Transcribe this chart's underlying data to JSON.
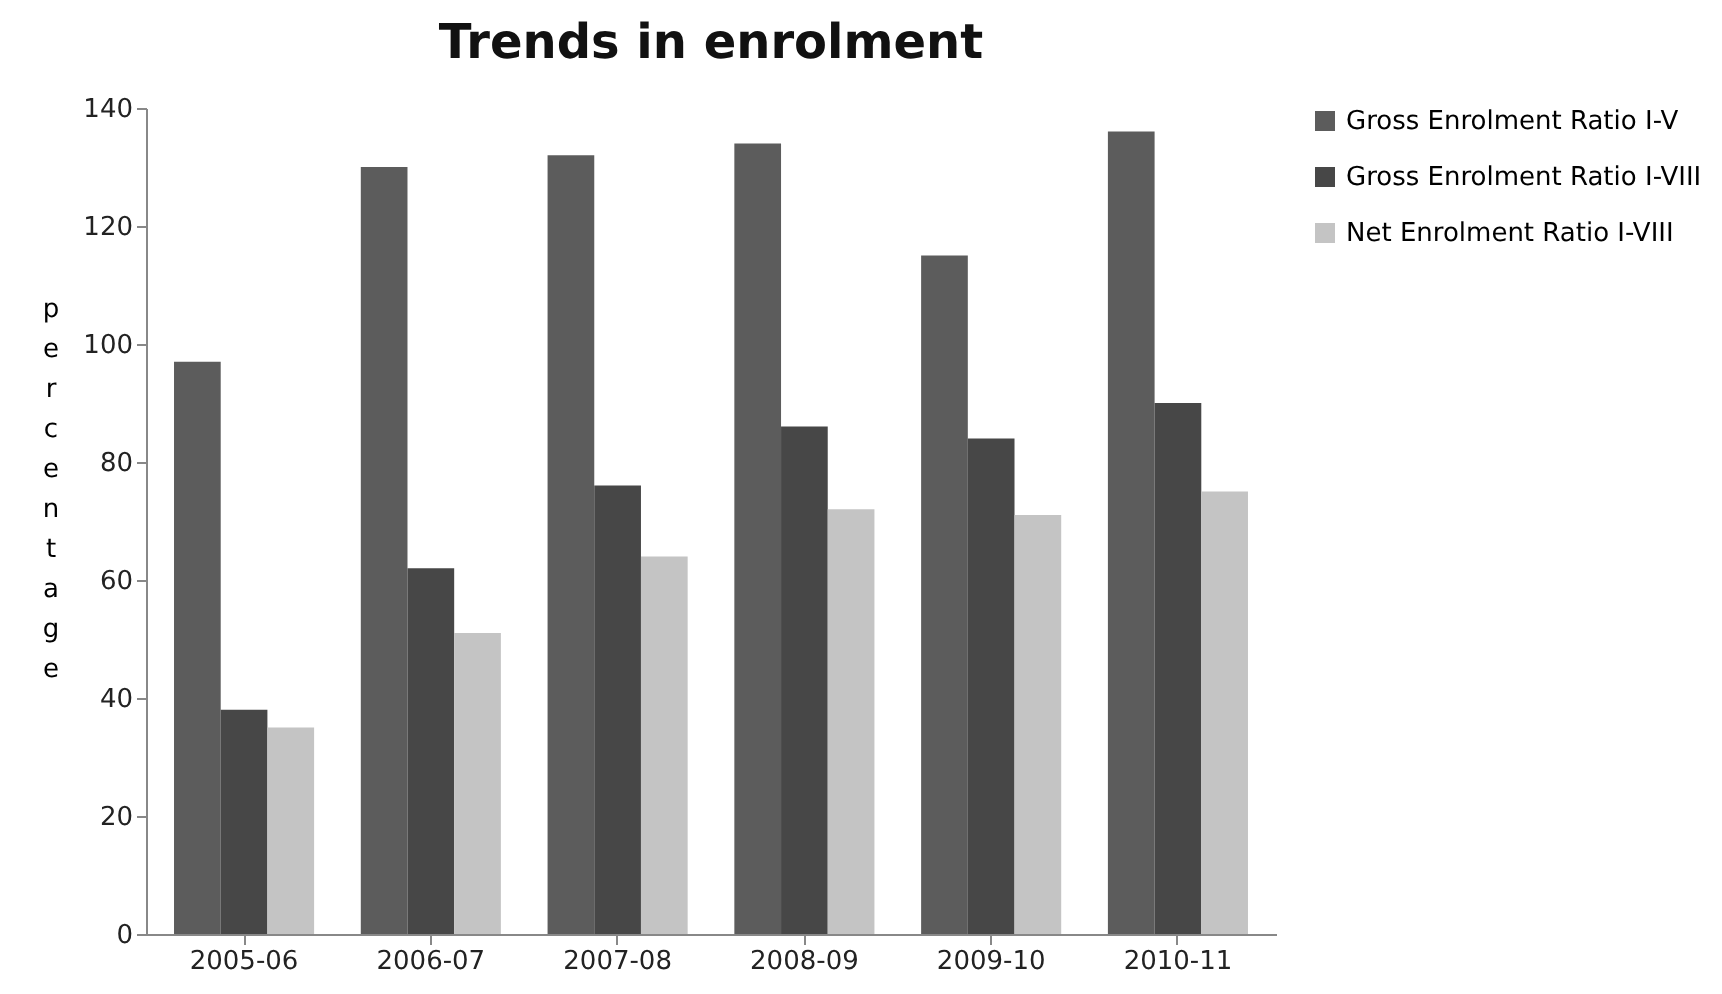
{
  "chart_data": {
    "type": "bar",
    "title": "Trends in enrolment",
    "ylabel": "percentage",
    "categories": [
      "2005-06",
      "2006-07",
      "2007-08",
      "2008-09",
      "2009-10",
      "2010-11"
    ],
    "series": [
      {
        "name": "Gross Enrolment Ratio I-V",
        "color": "#5c5c5c",
        "values": [
          97,
          130,
          132,
          134,
          115,
          136
        ]
      },
      {
        "name": "Gross Enrolment Ratio I-VIII",
        "color": "#474747",
        "values": [
          38,
          62,
          76,
          86,
          84,
          90
        ]
      },
      {
        "name": "Net Enrolment Ratio I-VIII",
        "color": "#c4c4c4",
        "values": [
          35,
          51,
          64,
          72,
          71,
          75
        ]
      }
    ],
    "ylim": [
      0,
      140
    ],
    "yticks": [
      0,
      20,
      40,
      60,
      80,
      100,
      120,
      140
    ],
    "grid": false,
    "legend": "right"
  }
}
